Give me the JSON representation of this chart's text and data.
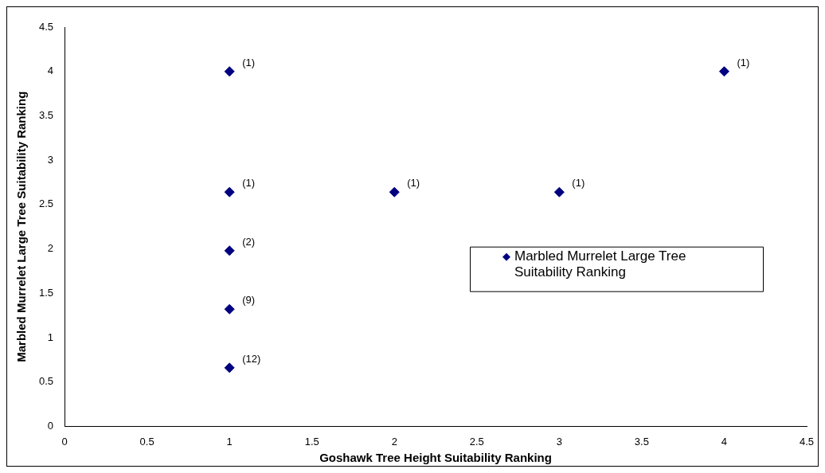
{
  "chart_data": {
    "type": "scatter",
    "xlabel": "Goshawk Tree Height Suitability Ranking",
    "ylabel": "Marbled Murrelet Large Tree Suitability Ranking",
    "xlim": [
      0,
      4.5
    ],
    "xticks": [
      0,
      0.5,
      1,
      1.5,
      2,
      2.5,
      3,
      3.5,
      4,
      4.5
    ],
    "ylim": [
      0,
      4.5
    ],
    "yticks": [
      0,
      0.5,
      1,
      1.5,
      2,
      2.5,
      3,
      3.5,
      4,
      4.5
    ],
    "series": [
      {
        "name": "Marbled Murrelet Large Tree Suitability Ranking",
        "color": "#000080",
        "x": [
          1,
          1,
          1,
          1,
          1,
          2,
          3,
          4
        ],
        "values": [
          4,
          2.64,
          1.98,
          1.32,
          0.66,
          2.64,
          2.64,
          4
        ]
      }
    ],
    "annotations": [
      {
        "text": "(1)",
        "x": 1,
        "y": 4
      },
      {
        "text": "(1)",
        "x": 1,
        "y": 2.64
      },
      {
        "text": "(2)",
        "x": 1,
        "y": 1.98
      },
      {
        "text": "(9)",
        "x": 1,
        "y": 1.32
      },
      {
        "text": "(12)",
        "x": 1,
        "y": 0.66
      },
      {
        "text": "(1)",
        "x": 2,
        "y": 2.64
      },
      {
        "text": "(1)",
        "x": 3,
        "y": 2.64
      },
      {
        "text": "(1)",
        "x": 4,
        "y": 4
      }
    ],
    "marker": "diamond",
    "legend": "right",
    "grid": false
  }
}
